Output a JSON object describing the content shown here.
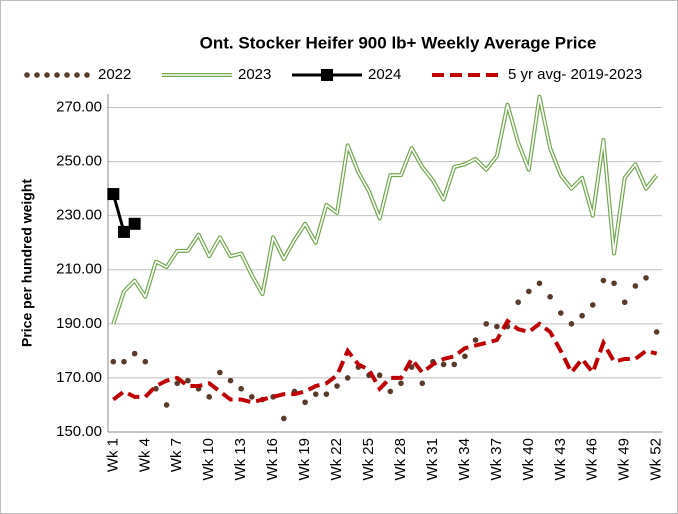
{
  "chart_data": {
    "type": "line",
    "title": "Ont. Stocker Heifer 900 lb+  Weekly Average Price",
    "y_label": "Price per hundred weight",
    "categories": [
      "Wk 1",
      null,
      null,
      "Wk 4",
      null,
      null,
      "Wk 7",
      null,
      null,
      "Wk 10",
      null,
      null,
      "Wk 13",
      null,
      null,
      "Wk 16",
      null,
      null,
      "Wk 19",
      null,
      null,
      "Wk 22",
      null,
      null,
      "Wk 25",
      null,
      null,
      "Wk 28",
      null,
      null,
      "Wk 31",
      null,
      null,
      "Wk 34",
      null,
      null,
      "Wk 37",
      null,
      null,
      "Wk 40",
      null,
      null,
      "Wk 43",
      null,
      null,
      "Wk 46",
      null,
      null,
      "Wk 49",
      null,
      null,
      "Wk 52"
    ],
    "series": [
      {
        "name": "2022",
        "color": "#5b3a29",
        "style": "dots",
        "values": [
          176,
          176,
          179,
          176,
          166,
          160,
          168,
          169,
          166,
          163,
          172,
          169,
          166,
          163,
          162,
          163,
          155,
          165,
          161,
          164,
          164,
          167,
          170,
          174,
          171,
          171,
          165,
          168,
          174,
          168,
          176,
          175,
          175,
          178,
          184,
          190,
          189,
          189,
          198,
          202,
          205,
          200,
          194,
          190,
          193,
          197,
          206,
          205,
          198,
          204,
          207,
          187
        ]
      },
      {
        "name": "2023",
        "color": "#70a84a",
        "style": "double",
        "values": [
          190,
          202,
          206,
          200,
          213,
          211,
          217,
          217,
          223,
          215,
          222,
          215,
          216,
          208,
          201,
          222,
          214,
          221,
          227,
          220,
          234,
          231,
          256,
          246,
          239,
          229,
          245,
          245,
          255,
          248,
          243,
          236,
          248,
          249,
          251,
          247,
          252,
          271,
          257,
          247,
          274,
          255,
          245,
          240,
          244,
          230,
          258,
          216,
          244,
          249,
          240,
          245
        ]
      },
      {
        "name": "2024",
        "color": "#000000",
        "style": "squares",
        "values": [
          238,
          224,
          227,
          null,
          null,
          null,
          null,
          null,
          null,
          null,
          null,
          null,
          null,
          null,
          null,
          null,
          null,
          null,
          null,
          null,
          null,
          null,
          null,
          null,
          null,
          null,
          null,
          null,
          null,
          null,
          null,
          null,
          null,
          null,
          null,
          null,
          null,
          null,
          null,
          null,
          null,
          null,
          null,
          null,
          null,
          null,
          null,
          null,
          null,
          null,
          null,
          null
        ]
      },
      {
        "name": "5 yr avg- 2019-2023",
        "color": "#c00000",
        "style": "dashed",
        "values": [
          162,
          165,
          163,
          163,
          167,
          169,
          170,
          167,
          167,
          168,
          165,
          162,
          162,
          161,
          162,
          163,
          164,
          164,
          165,
          167,
          168,
          171,
          180,
          175,
          173,
          166,
          170,
          170,
          177,
          172,
          175,
          177,
          178,
          181,
          182,
          183,
          184,
          191,
          188,
          187,
          190,
          187,
          180,
          172,
          177,
          172,
          183,
          176,
          177,
          177,
          180,
          179
        ]
      }
    ],
    "ylim": [
      150,
      275
    ],
    "yticks": [
      {
        "value": 150,
        "label": "150.00"
      },
      {
        "value": 170,
        "label": "170.00"
      },
      {
        "value": 190,
        "label": "190.00"
      },
      {
        "value": 210,
        "label": "210.00"
      },
      {
        "value": 230,
        "label": "230.00"
      },
      {
        "value": 250,
        "label": "250.00"
      },
      {
        "value": 270,
        "label": "270.00"
      }
    ],
    "grid": true,
    "legend": "top"
  }
}
